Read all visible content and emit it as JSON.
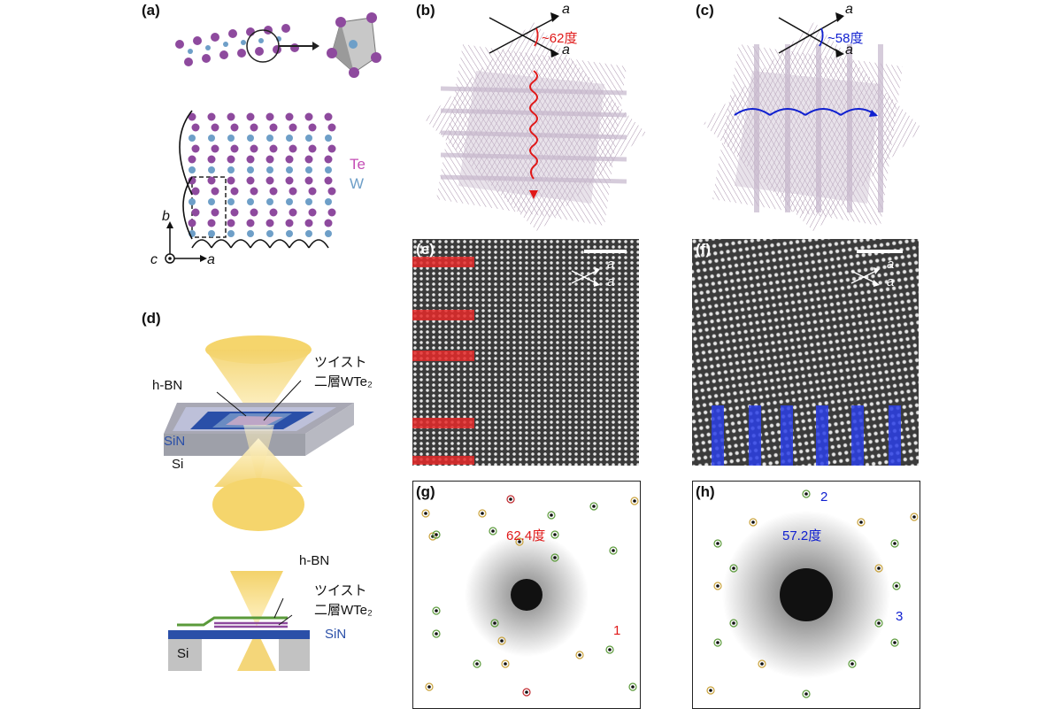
{
  "labels": {
    "a": "(a)",
    "b": "(b)",
    "c": "(c)",
    "d": "(d)",
    "e": "(e)",
    "f": "(f)",
    "g": "(g)",
    "h": "(h)"
  },
  "panel_a": {
    "te_label": "Te",
    "w_label": "W",
    "axis_b": "b",
    "axis_c": "c",
    "axis_a": "a",
    "te_color": "#8e4a9e",
    "w_color": "#6e9fc8"
  },
  "panel_b": {
    "angle": "~62度",
    "axis_top": "a",
    "axis_bottom": "a",
    "color": "#e01818"
  },
  "panel_c": {
    "angle": "~58度",
    "axis_top": "a",
    "axis_bottom": "a",
    "color": "#1020d0"
  },
  "panel_d": {
    "hbn_label": "h-BN",
    "twist_line1": "ツイスト",
    "twist_line2": "二層WTe₂",
    "sin_label": "SiN",
    "si_label": "Si",
    "hbn_label2": "h-BN",
    "twist2_line1": "ツイスト",
    "twist2_line2": "二層WTe₂",
    "sin_label2": "SiN",
    "si_label2": "Si"
  },
  "panel_e": {
    "axis_top": "a",
    "axis_bottom": "a"
  },
  "panel_f": {
    "axis_top": "a",
    "axis_bottom": "a"
  },
  "panel_g": {
    "angle": "62.4度",
    "spot_label": "1"
  },
  "panel_h": {
    "angle": "57.2度",
    "spot_label_top": "2",
    "spot_label_right": "3"
  }
}
